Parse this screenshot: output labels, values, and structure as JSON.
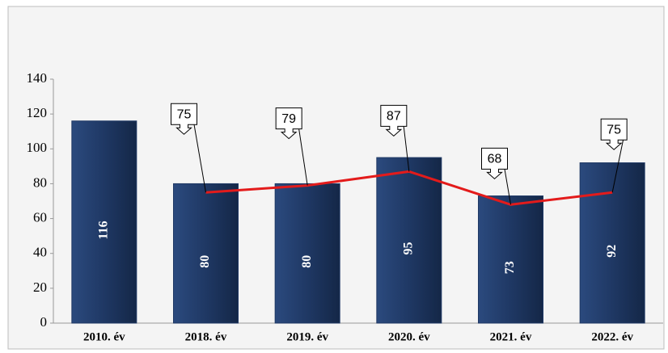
{
  "chart_data": {
    "type": "bar",
    "categories": [
      "2010. év",
      "2018. év",
      "2019. év",
      "2020. év",
      "2021. év",
      "2022. év"
    ],
    "series": [
      {
        "type": "bar",
        "color": "#1f3864",
        "values": [
          116,
          80,
          80,
          95,
          73,
          92
        ]
      },
      {
        "type": "line",
        "color": "#e31b1b",
        "values": [
          null,
          75,
          79,
          87,
          68,
          75
        ]
      }
    ],
    "ylim": [
      0,
      140
    ],
    "yticks": [
      0,
      20,
      40,
      60,
      80,
      100,
      120,
      140
    ]
  }
}
